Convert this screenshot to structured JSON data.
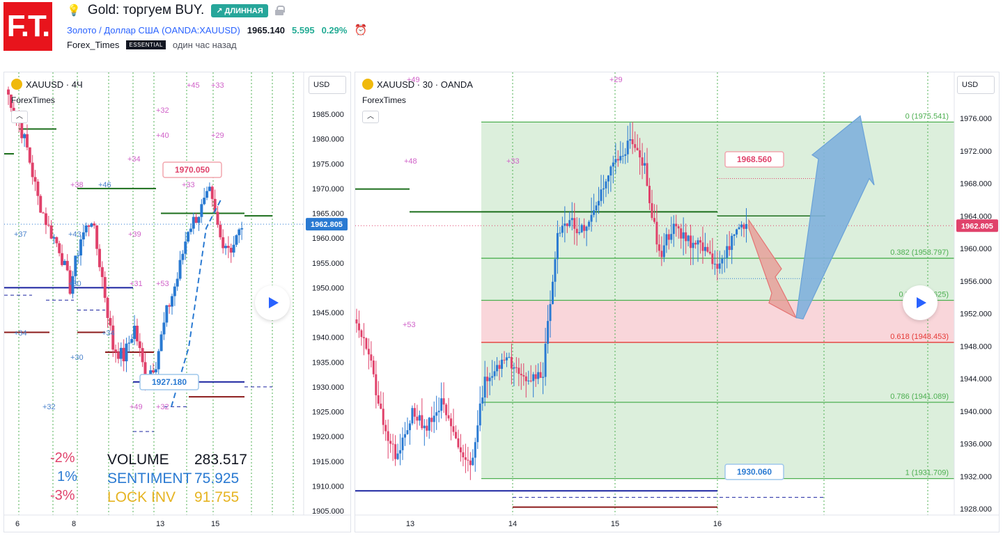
{
  "header": {
    "logo_text": "F.T.",
    "title": "Gold: торгуем BUY.",
    "badge": "↗ ДЛИННАЯ",
    "symbol_name": "Золото / Доллар США",
    "symbol_exchange": "(OANDA:XAUUSD)",
    "price": "1965.140",
    "change": "5.595",
    "change_pct": "0.29%",
    "author": "Forex_Times",
    "author_badge": "ESSENTIAL",
    "time_ago": "один час назад"
  },
  "colors": {
    "up": "#2a7ad2",
    "down": "#e0426b",
    "brand": "#e8141c",
    "fib_green": "#4caf50",
    "fib_zone_green": "#dcefdc",
    "fib_zone_red": "#f9d6da",
    "arrow_blue": "#7fb0dc",
    "arrow_red": "#e6a09a"
  },
  "chart1": {
    "legend": "XAUUSD · 4Ч",
    "author": "ForexTimes",
    "currency": "USD",
    "price_badge": "1962.805",
    "y_ticks": [
      "1985.000",
      "1980.000",
      "1975.000",
      "1970.000",
      "1965.000",
      "1960.000",
      "1955.000",
      "1950.000",
      "1945.000",
      "1940.000",
      "1935.000",
      "1930.000",
      "1925.000",
      "1920.000",
      "1915.000",
      "1910.000",
      "1905.000"
    ],
    "x_ticks": [
      "6",
      "8",
      "13",
      "15"
    ],
    "callout_high": "1970.050",
    "callout_low": "1927.180",
    "pink_labels": [
      "+45",
      "+33",
      "+32",
      "+40",
      "+29",
      "+34",
      "+38",
      "+33",
      "+39",
      "+53",
      "+31",
      "+49",
      "+32"
    ],
    "blue_labels": [
      "+37",
      "+46",
      "+43",
      "+30",
      "+30",
      "+32",
      "+34",
      "+34"
    ],
    "stats": {
      "pct1": "-2%",
      "pct2": "1%",
      "pct3": "-3%",
      "volume_label": "VOLUME",
      "volume_value": "283.517",
      "sentiment_label": "SENTIMENT",
      "sentiment_value": "75.925",
      "lockinv_label": "LOCK INV",
      "lockinv_value": "91.755"
    }
  },
  "chart2": {
    "legend": "XAUUSD · 30 · OANDA",
    "author": "ForexTimes",
    "currency": "USD",
    "price_badge": "1962.805",
    "y_ticks": [
      "1976.000",
      "1972.000",
      "1968.000",
      "1964.000",
      "1960.000",
      "1956.000",
      "1952.000",
      "1948.000",
      "1944.000",
      "1940.000",
      "1936.000",
      "1932.000",
      "1928.000"
    ],
    "x_ticks": [
      "13",
      "14",
      "15",
      "16"
    ],
    "callout_high": "1968.560",
    "callout_low": "1930.060",
    "pink_labels": [
      "+48",
      "+33",
      "+53",
      "+29",
      "+49"
    ],
    "fib_levels": [
      {
        "label": "0 (1975.541)"
      },
      {
        "label": "0.382 (1958.797)"
      },
      {
        "label": "0.5 (1953.625)"
      },
      {
        "label": "0.618 (1948.453)"
      },
      {
        "label": "0.786 (1941.089)"
      },
      {
        "label": "1 (1931.709)"
      }
    ]
  }
}
